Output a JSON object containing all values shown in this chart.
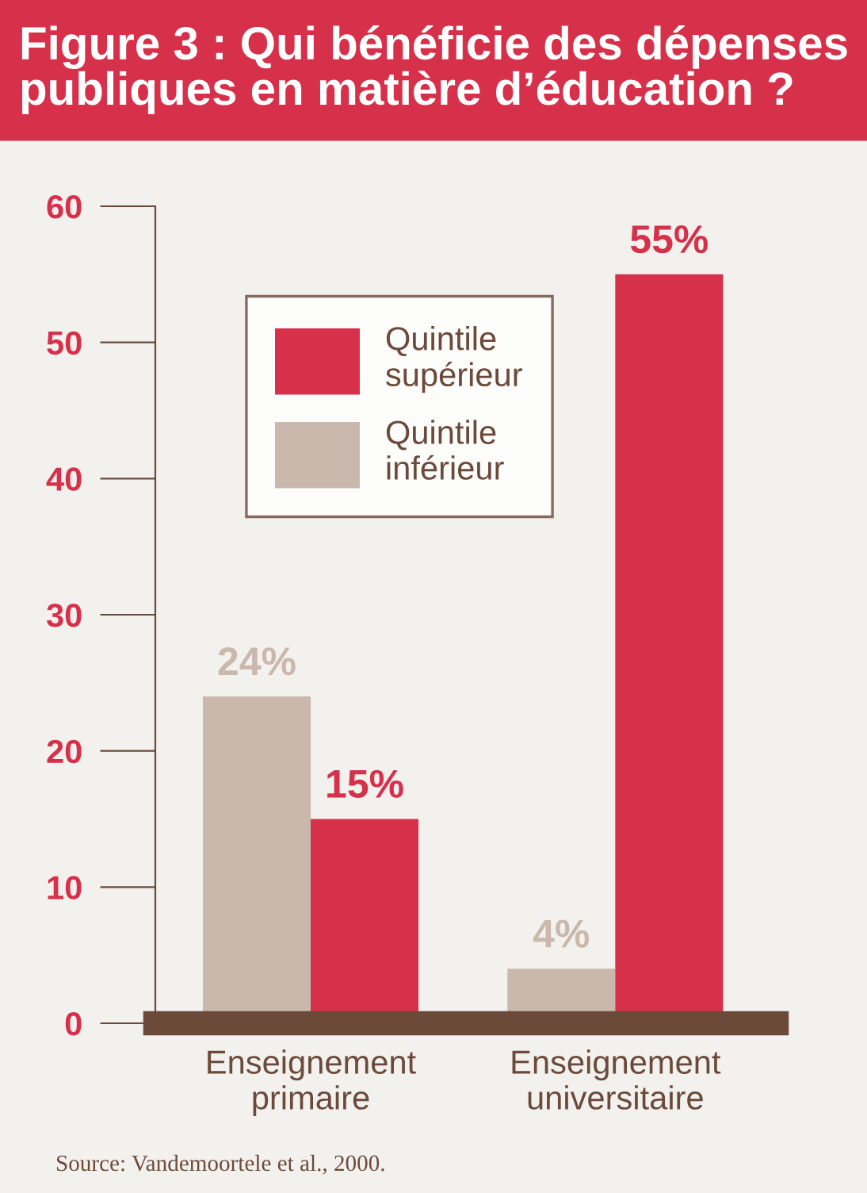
{
  "chart_data": {
    "type": "bar",
    "title": "Figure 3 : Qui bénéficie des dépenses\npubliques en matière d’éducation ?",
    "categories": [
      "Enseignement\nprimaire",
      "Enseignement\nuniversitaire"
    ],
    "series": [
      {
        "name": "Quintile\ninférieur",
        "color": "#c9b8ab",
        "values": [
          24,
          4
        ],
        "value_labels": [
          "24%",
          "4%"
        ]
      },
      {
        "name": "Quintile\nsupérieur",
        "color": "#d7304a",
        "values": [
          15,
          55
        ],
        "value_labels": [
          "15%",
          "55%"
        ]
      }
    ],
    "ylim": [
      0,
      60
    ],
    "yticks": [
      0,
      10,
      20,
      30,
      40,
      50,
      60
    ],
    "grid": false,
    "legend": "top left",
    "annotations": [
      "Source: Vandemoortele et al., 2000."
    ]
  }
}
